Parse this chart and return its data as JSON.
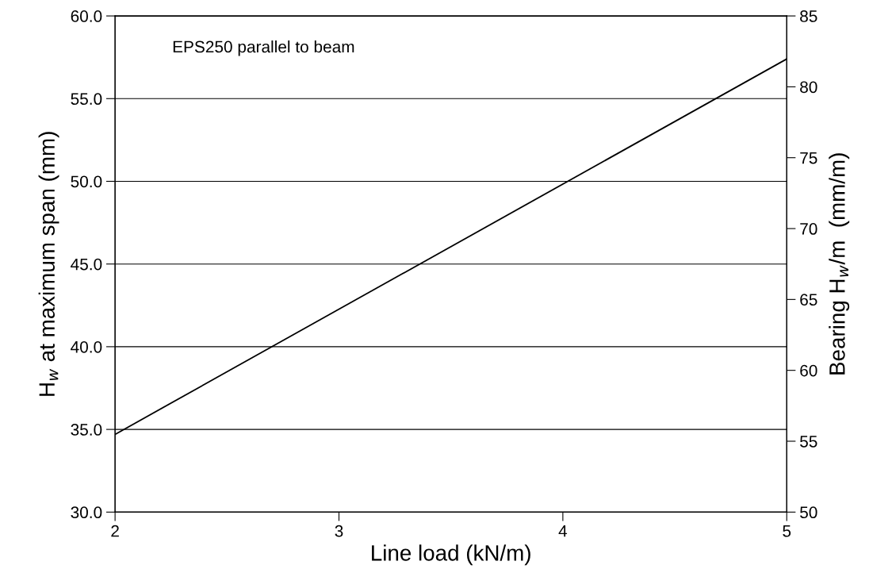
{
  "chart_data": {
    "type": "line",
    "xlabel": "Line load (kN/m)",
    "ylabel": "H$_{w}$ at maximum span (mm)",
    "y2label": "Bearing H$_{w}$/m  (mm/m)",
    "annotations": [
      "EPS250 parallel to beam"
    ],
    "series": [
      {
        "color": "#000000",
        "x": [
          2,
          5
        ],
        "values": [
          34.7,
          57.4
        ]
      }
    ],
    "xlim": [
      2,
      5
    ],
    "xticks": [
      2,
      3,
      4,
      5
    ],
    "ylim": [
      30,
      60
    ],
    "yticks": [
      {
        "value": 30,
        "label": "30.0"
      },
      {
        "value": 35,
        "label": "35.0"
      },
      {
        "value": 40,
        "label": "40.0"
      },
      {
        "value": 45,
        "label": "45.0"
      },
      {
        "value": 50,
        "label": "50.0"
      },
      {
        "value": 55,
        "label": "55.0"
      },
      {
        "value": 60,
        "label": "60.0"
      }
    ],
    "y2lim": [
      50,
      85
    ],
    "y2ticks": [
      50,
      55,
      60,
      65,
      70,
      75,
      80,
      85
    ],
    "grid": "y",
    "legend": false,
    "marker": "none",
    "line_style": "solid"
  }
}
